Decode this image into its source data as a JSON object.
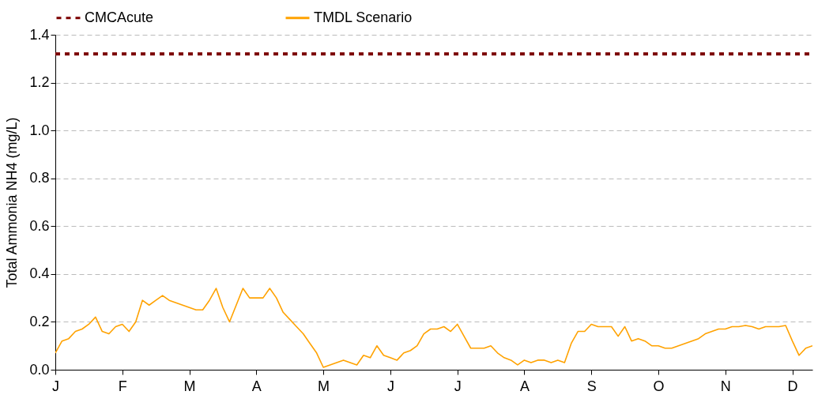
{
  "chart_data": {
    "type": "line",
    "ylabel": "Total Ammonia NH4 (mg/L)",
    "ylim": [
      0,
      1.4
    ],
    "categories": [
      "J",
      null,
      null,
      null,
      null,
      null,
      null,
      null,
      null,
      null,
      "F",
      null,
      null,
      null,
      null,
      null,
      null,
      null,
      null,
      null,
      "M",
      null,
      null,
      null,
      null,
      null,
      null,
      null,
      null,
      null,
      "A",
      null,
      null,
      null,
      null,
      null,
      null,
      null,
      null,
      null,
      "M",
      null,
      null,
      null,
      null,
      null,
      null,
      null,
      null,
      null,
      "J",
      null,
      null,
      null,
      null,
      null,
      null,
      null,
      null,
      null,
      "J",
      null,
      null,
      null,
      null,
      null,
      null,
      null,
      null,
      null,
      "A",
      null,
      null,
      null,
      null,
      null,
      null,
      null,
      null,
      null,
      "S",
      null,
      null,
      null,
      null,
      null,
      null,
      null,
      null,
      null,
      "O",
      null,
      null,
      null,
      null,
      null,
      null,
      null,
      null,
      null,
      "N",
      null,
      null,
      null,
      null,
      null,
      null,
      null,
      null,
      null,
      "D",
      null,
      null,
      null
    ],
    "yticks": [
      {
        "value": 0,
        "label": "0.0"
      },
      {
        "value": 0.2,
        "label": "0.2"
      },
      {
        "value": 0.4,
        "label": "0.4"
      },
      {
        "value": 0.6,
        "label": "0.6"
      },
      {
        "value": 0.8,
        "label": "0.8"
      },
      {
        "value": 1,
        "label": "1.0"
      },
      {
        "value": 1.2,
        "label": "1.2"
      },
      {
        "value": 1.4,
        "label": "1.4"
      }
    ],
    "grid": "y",
    "legend": "top",
    "series": [
      {
        "name": "CMCAcute",
        "color": "#7b0000",
        "line_style": "dashed",
        "values": [
          1.32,
          1.32,
          1.32,
          1.32,
          1.32,
          1.32,
          1.32,
          1.32,
          1.32,
          1.32,
          1.32,
          1.32,
          1.32,
          1.32,
          1.32,
          1.32,
          1.32,
          1.32,
          1.32,
          1.32,
          1.32,
          1.32,
          1.32,
          1.32,
          1.32,
          1.32,
          1.32,
          1.32,
          1.32,
          1.32,
          1.32,
          1.32,
          1.32,
          1.32,
          1.32,
          1.32,
          1.32,
          1.32,
          1.32,
          1.32,
          1.32,
          1.32,
          1.32,
          1.32,
          1.32,
          1.32,
          1.32,
          1.32,
          1.32,
          1.32,
          1.32,
          1.32,
          1.32,
          1.32,
          1.32,
          1.32,
          1.32,
          1.32,
          1.32,
          1.32,
          1.32,
          1.32,
          1.32,
          1.32,
          1.32,
          1.32,
          1.32,
          1.32,
          1.32,
          1.32,
          1.32,
          1.32,
          1.32,
          1.32,
          1.32,
          1.32,
          1.32,
          1.32,
          1.32,
          1.32,
          1.32,
          1.32,
          1.32,
          1.32,
          1.32,
          1.32,
          1.32,
          1.32,
          1.32,
          1.32,
          1.32,
          1.32,
          1.32,
          1.32,
          1.32,
          1.32,
          1.32,
          1.32,
          1.32,
          1.32,
          1.32,
          1.32,
          1.32,
          1.32,
          1.32,
          1.32,
          1.32,
          1.32,
          1.32,
          1.32,
          1.32,
          1.32,
          1.32,
          1.32
        ]
      },
      {
        "name": "TMDL Scenario",
        "color": "#ffa200",
        "line_style": "solid",
        "values": [
          0.07,
          0.12,
          0.13,
          0.16,
          0.17,
          0.19,
          0.22,
          0.16,
          0.15,
          0.18,
          0.19,
          0.16,
          0.2,
          0.29,
          0.27,
          0.29,
          0.31,
          0.29,
          0.28,
          0.27,
          0.26,
          0.25,
          0.25,
          0.29,
          0.34,
          0.26,
          0.2,
          0.27,
          0.34,
          0.3,
          0.3,
          0.3,
          0.34,
          0.3,
          0.24,
          0.21,
          0.18,
          0.15,
          0.11,
          0.07,
          0.01,
          0.02,
          0.03,
          0.04,
          0.03,
          0.02,
          0.06,
          0.05,
          0.1,
          0.06,
          0.05,
          0.04,
          0.07,
          0.08,
          0.1,
          0.15,
          0.17,
          0.17,
          0.18,
          0.16,
          0.19,
          0.14,
          0.09,
          0.09,
          0.09,
          0.1,
          0.07,
          0.05,
          0.04,
          0.02,
          0.04,
          0.03,
          0.04,
          0.04,
          0.03,
          0.04,
          0.03,
          0.11,
          0.16,
          0.16,
          0.19,
          0.18,
          0.18,
          0.18,
          0.14,
          0.18,
          0.12,
          0.13,
          0.12,
          0.1,
          0.1,
          0.09,
          0.09,
          0.1,
          0.11,
          0.12,
          0.13,
          0.15,
          0.16,
          0.17,
          0.17,
          0.18,
          0.18,
          0.185,
          0.18,
          0.17,
          0.18,
          0.18,
          0.18,
          0.185,
          0.12,
          0.06,
          0.09,
          0.1
        ]
      }
    ]
  }
}
